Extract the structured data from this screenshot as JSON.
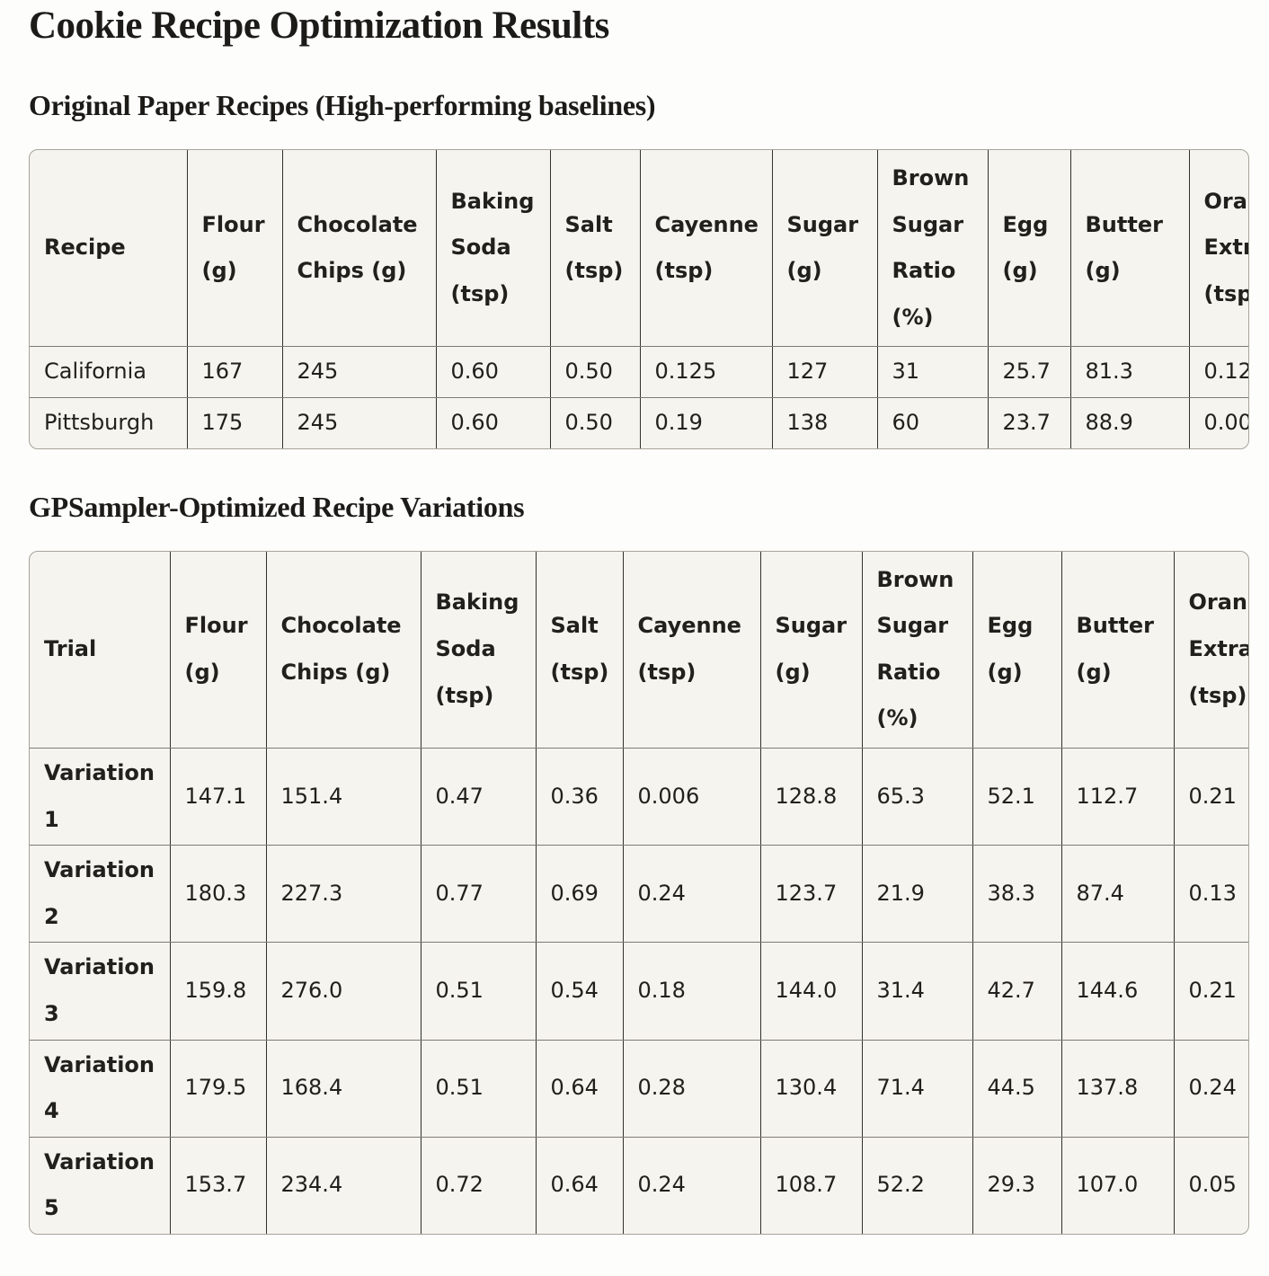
{
  "page": {
    "title": "Cookie Recipe Optimization Results",
    "colors": {
      "page_bg": "#fdfdfb",
      "table_bg": "#f6f4ee",
      "outer_border": "#a5a39b",
      "vertical_border": "#32312d",
      "horizontal_border": "#7c7b73",
      "text": "#21201d"
    }
  },
  "sections": [
    {
      "heading": "Original Paper Recipes (High-performing baselines)",
      "table": {
        "columns": [
          "Recipe",
          "Flour (g)",
          "Chocolate Chips (g)",
          "Baking Soda (tsp)",
          "Salt (tsp)",
          "Cayenne (tsp)",
          "Sugar (g)",
          "Brown Sugar Ratio (%)",
          "Egg (g)",
          "Butter (g)",
          "Orange Extract (tsp)"
        ],
        "rows": [
          {
            "label": "California",
            "values": [
              "167",
              "245",
              "0.60",
              "0.50",
              "0.125",
              "127",
              "31",
              "25.7",
              "81.3",
              "0.12"
            ]
          },
          {
            "label": "Pittsburgh",
            "values": [
              "175",
              "245",
              "0.60",
              "0.50",
              "0.19",
              "138",
              "60",
              "23.7",
              "88.9",
              "0.00"
            ]
          }
        ]
      }
    },
    {
      "heading": "GPSampler-Optimized Recipe Variations",
      "table": {
        "columns": [
          "Trial",
          "Flour (g)",
          "Chocolate Chips (g)",
          "Baking Soda (tsp)",
          "Salt (tsp)",
          "Cayenne (tsp)",
          "Sugar (g)",
          "Brown Sugar Ratio (%)",
          "Egg (g)",
          "Butter (g)",
          "Orange Extract (tsp)"
        ],
        "rows": [
          {
            "label": "Variation 1",
            "values": [
              "147.1",
              "151.4",
              "0.47",
              "0.36",
              "0.006",
              "128.8",
              "65.3",
              "52.1",
              "112.7",
              "0.21"
            ]
          },
          {
            "label": "Variation 2",
            "values": [
              "180.3",
              "227.3",
              "0.77",
              "0.69",
              "0.24",
              "123.7",
              "21.9",
              "38.3",
              "87.4",
              "0.13"
            ]
          },
          {
            "label": "Variation 3",
            "values": [
              "159.8",
              "276.0",
              "0.51",
              "0.54",
              "0.18",
              "144.0",
              "31.4",
              "42.7",
              "144.6",
              "0.21"
            ]
          },
          {
            "label": "Variation 4",
            "values": [
              "179.5",
              "168.4",
              "0.51",
              "0.64",
              "0.28",
              "130.4",
              "71.4",
              "44.5",
              "137.8",
              "0.24"
            ]
          },
          {
            "label": "Variation 5",
            "values": [
              "153.7",
              "234.4",
              "0.72",
              "0.64",
              "0.24",
              "108.7",
              "52.2",
              "29.3",
              "107.0",
              "0.05"
            ]
          }
        ]
      }
    }
  ]
}
